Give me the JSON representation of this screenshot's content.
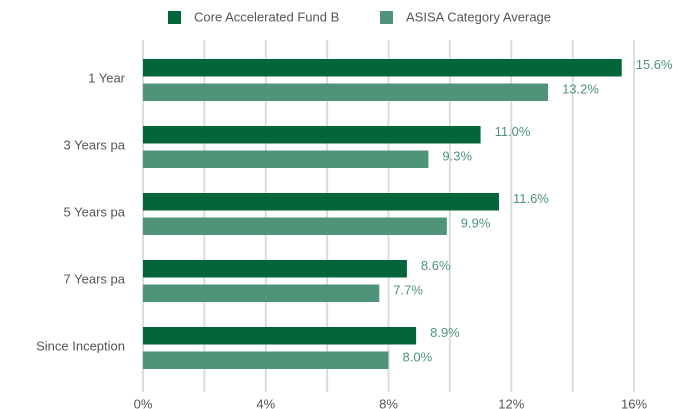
{
  "chart_data": {
    "type": "hbar",
    "categories": [
      "1 Year",
      "3 Years pa",
      "5 Years pa",
      "7 Years pa",
      "Since Inception"
    ],
    "series": [
      {
        "name": "Core Accelerated Fund B",
        "color": "#03653a",
        "values": [
          15.6,
          11.0,
          11.6,
          8.6,
          8.9
        ],
        "value_labels": [
          "15.6%",
          "11.0%",
          "11.6%",
          "8.6%",
          "8.9%"
        ]
      },
      {
        "name": "ASISA Category Average",
        "color": "#4f9479",
        "values": [
          13.2,
          9.3,
          9.9,
          7.7,
          8.0
        ],
        "value_labels": [
          "13.2%",
          "9.3%",
          "9.9%",
          "7.7%",
          "8.0%"
        ]
      }
    ],
    "xlim": [
      0,
      16
    ],
    "xticks": [
      {
        "value": 0,
        "label": "0%"
      },
      {
        "value": 4,
        "label": "4%"
      },
      {
        "value": 8,
        "label": "8%"
      },
      {
        "value": 12,
        "label": "12%"
      },
      {
        "value": 16,
        "label": "16%"
      }
    ],
    "minor_xticks": [
      2,
      6,
      10,
      14
    ],
    "grid": true,
    "legend": "top"
  }
}
